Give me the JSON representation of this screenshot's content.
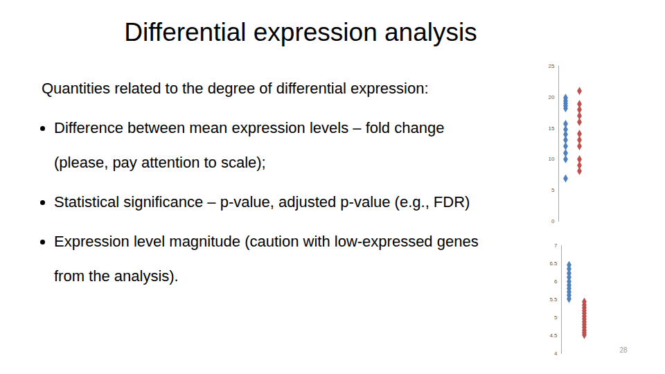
{
  "title": "Differential expression analysis",
  "intro": "Quantities related to the degree of differential expression:",
  "bullets": [
    "Difference between mean expression levels – fold change (please, pay attention to scale);",
    "Statistical significance – p-value, adjusted p-value (e.g., FDR)",
    "Expression level magnitude (caution with low-expressed genes from the analysis)."
  ],
  "page_number": 28,
  "chart_data": [
    {
      "type": "scatter",
      "marker": "diamond",
      "tick_labels": "y",
      "ylim": [
        0,
        25
      ],
      "yticks": [
        0,
        5,
        10,
        15,
        20,
        25
      ],
      "series": [
        {
          "color": "#4f81bd",
          "values": [
            19.9,
            19.4,
            19.0,
            18.6,
            18.2,
            15.7,
            14.8,
            14.0,
            13.1,
            12.1,
            11.0,
            10.0,
            6.9
          ]
        },
        {
          "color": "#c0504d",
          "values": [
            21.0,
            18.9,
            18.0,
            17.0,
            16.0,
            14.1,
            13.1,
            12.1,
            10.0,
            9.0,
            8.1
          ]
        }
      ]
    },
    {
      "type": "scatter",
      "marker": "diamond",
      "tick_labels": "y",
      "ylim": [
        4,
        7
      ],
      "yticks": [
        4,
        4.5,
        5,
        5.5,
        6,
        6.5,
        7
      ],
      "series": [
        {
          "color": "#4f81bd",
          "values": [
            6.46,
            6.35,
            6.23,
            6.12,
            6.0,
            5.9,
            5.81,
            5.71,
            5.62,
            5.52
          ]
        },
        {
          "color": "#c0504d",
          "values": [
            5.44,
            5.35,
            5.27,
            5.19,
            5.12,
            5.04,
            4.96,
            4.88,
            4.81,
            4.73,
            4.65,
            4.58,
            4.52
          ]
        }
      ]
    }
  ]
}
